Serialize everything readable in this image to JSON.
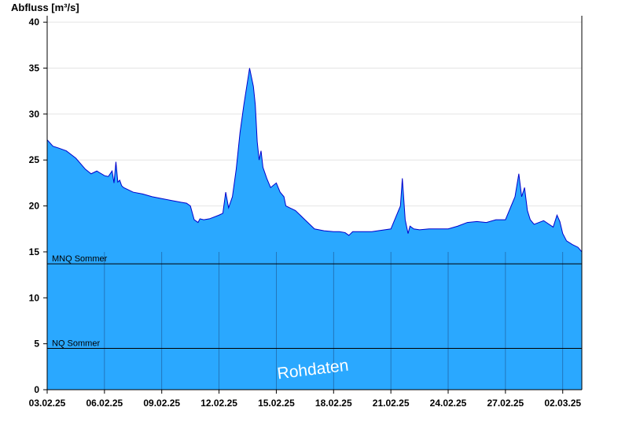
{
  "chart_data": {
    "type": "area",
    "ylabel": "Abfluss [m³/s]",
    "ylim": [
      0,
      40.7
    ],
    "yticks": [
      0,
      5,
      10,
      15,
      20,
      25,
      30,
      35,
      40
    ],
    "xlim": [
      "03.02.25",
      "03.03.25"
    ],
    "xticks": [
      "03.02.25",
      "06.02.25",
      "09.02.25",
      "12.02.25",
      "15.02.25",
      "18.02.25",
      "21.02.25",
      "24.02.25",
      "27.02.25",
      "02.03.25"
    ],
    "watermark": "Rohdaten",
    "colors": {
      "fill": "#2aa8ff",
      "line": "#0000cc",
      "grid": "#e4e4e4",
      "ref": "#000000"
    },
    "reference_lines": [
      {
        "label": "MNQ Sommer",
        "value": 13.7
      },
      {
        "label": "NQ Sommer",
        "value": 4.5
      }
    ],
    "series": [
      {
        "x": [
          0,
          0.3,
          0.6,
          1,
          1.5,
          2,
          2.3,
          2.6,
          3,
          3.2,
          3.4,
          3.5,
          3.6,
          3.7,
          3.8,
          3.9,
          4,
          4.5,
          5,
          5.5,
          6,
          6.5,
          7,
          7.3,
          7.5,
          7.7,
          7.9,
          8,
          8.2,
          8.5,
          9,
          9.2,
          9.35,
          9.5,
          9.7,
          9.9,
          10.1,
          10.3,
          10.6,
          10.8,
          10.9,
          11,
          11.1,
          11.2,
          11.3,
          11.5,
          11.7,
          12,
          12.2,
          12.4,
          12.5,
          12.7,
          13,
          13.5,
          14,
          14.5,
          15,
          15.3,
          15.6,
          15.8,
          16,
          17,
          18,
          18.5,
          18.6,
          18.75,
          18.9,
          19,
          19.2,
          19.5,
          20,
          21,
          21.5,
          22,
          22.5,
          23,
          23.5,
          24,
          24.5,
          24.7,
          24.85,
          25,
          25.15,
          25.3,
          25.5,
          26,
          26.5,
          26.7,
          26.85,
          27,
          27.2,
          27.5,
          27.8,
          28
        ],
        "y": [
          27.2,
          26.5,
          26.3,
          26,
          25.2,
          24,
          23.5,
          23.8,
          23.3,
          23.2,
          23.8,
          22.5,
          24.8,
          22.6,
          22.8,
          22.2,
          22,
          21.5,
          21.3,
          21,
          20.8,
          20.6,
          20.4,
          20.3,
          20,
          18.5,
          18.2,
          18.6,
          18.5,
          18.6,
          19,
          19.2,
          21.5,
          19.8,
          21,
          24,
          28,
          31,
          35,
          33,
          31,
          27,
          25,
          26,
          24.2,
          23,
          22,
          22.5,
          21.5,
          21,
          20,
          19.8,
          19.5,
          18.5,
          17.5,
          17.3,
          17.2,
          17.2,
          17.1,
          16.8,
          17.2,
          17.2,
          17.5,
          20,
          23,
          18.5,
          17,
          17.8,
          17.5,
          17.4,
          17.5,
          17.5,
          17.8,
          18.2,
          18.3,
          18.2,
          18.5,
          18.5,
          21,
          23.5,
          21,
          22,
          19.5,
          18.5,
          18,
          18.4,
          17.7,
          19,
          18.3,
          17,
          16.2,
          15.8,
          15.5,
          15
        ]
      }
    ]
  }
}
